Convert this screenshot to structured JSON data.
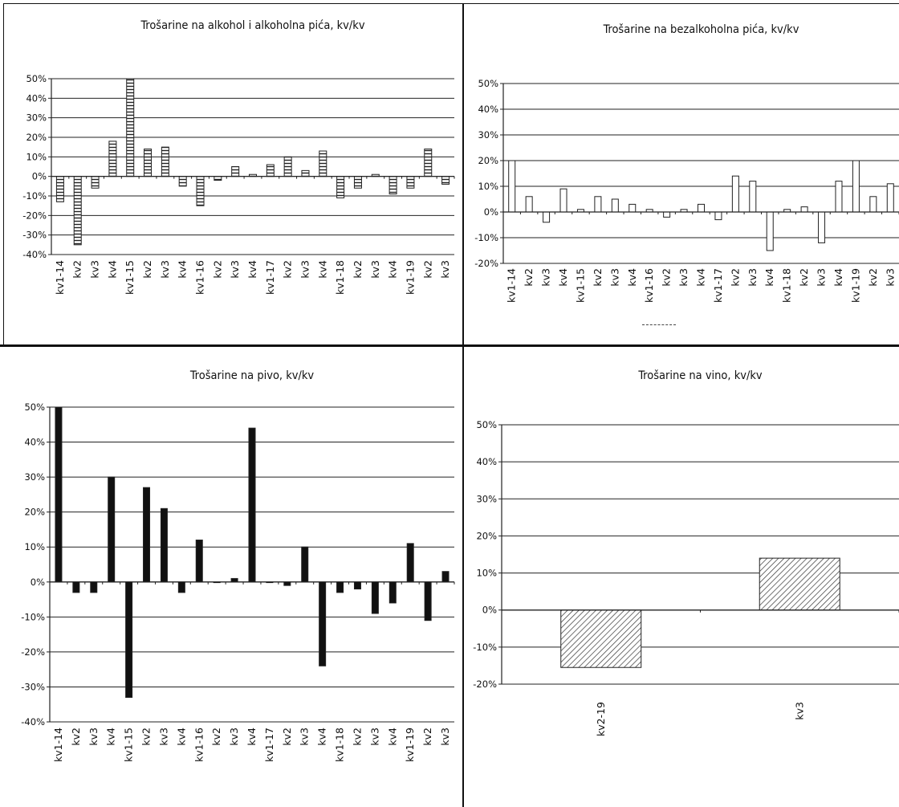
{
  "chart_data": [
    {
      "type": "bar",
      "title": "Trošarine na alkohol i alkoholna pića, kv/kv",
      "pattern": "horizontal-lines",
      "ylim": [
        -0.4,
        0.5
      ],
      "yticks": [
        "-40%",
        "-30%",
        "-20%",
        "-10%",
        "0%",
        "10%",
        "20%",
        "30%",
        "40%",
        "50%"
      ],
      "categories": [
        "kv1-14",
        "kv2",
        "kv3",
        "kv4",
        "kv1-15",
        "kv2",
        "kv3",
        "kv4",
        "kv1-16",
        "kv2",
        "kv3",
        "kv4",
        "kv1-17",
        "kv2",
        "kv3",
        "kv4",
        "kv1-18",
        "kv2",
        "kv3",
        "kv4",
        "kv1-19",
        "kv2",
        "kv3"
      ],
      "values": [
        -0.13,
        -0.35,
        -0.06,
        0.18,
        0.5,
        0.14,
        0.15,
        -0.05,
        -0.15,
        -0.02,
        0.05,
        0.01,
        0.06,
        0.1,
        0.03,
        0.13,
        -0.11,
        -0.06,
        0.01,
        -0.09,
        -0.06,
        0.14,
        -0.04
      ],
      "grid": true
    },
    {
      "type": "bar",
      "title": "Trošarine na bezalkoholna pića, kv/kv",
      "pattern": "white",
      "ylim": [
        -0.2,
        0.5
      ],
      "yticks": [
        "-20%",
        "-10%",
        "0%",
        "10%",
        "20%",
        "30%",
        "40%",
        "50%"
      ],
      "categories": [
        "kv1-14",
        "kv2",
        "kv3",
        "kv4",
        "kv1-15",
        "kv2",
        "kv3",
        "kv4",
        "kv1-16",
        "kv2",
        "kv3",
        "kv4",
        "kv1-17",
        "kv2",
        "kv3",
        "kv4",
        "kv1-18",
        "kv2",
        "kv3",
        "kv4",
        "kv1-19",
        "kv2",
        "kv3"
      ],
      "values": [
        0.2,
        0.06,
        -0.04,
        0.09,
        0.01,
        0.06,
        0.05,
        0.03,
        0.01,
        -0.02,
        0.01,
        0.03,
        -0.03,
        0.14,
        0.12,
        -0.15,
        0.01,
        0.02,
        -0.12,
        0.12,
        0.2,
        0.06,
        0.11
      ],
      "grid": true
    },
    {
      "type": "bar",
      "title": "Trošarine na pivo, kv/kv",
      "pattern": "solid-black",
      "ylim": [
        -0.4,
        0.5
      ],
      "yticks": [
        "-40%",
        "-30%",
        "-20%",
        "-10%",
        "0%",
        "10%",
        "20%",
        "30%",
        "40%",
        "50%"
      ],
      "categories": [
        "kv1-14",
        "kv2",
        "kv3",
        "kv4",
        "kv1-15",
        "kv2",
        "kv3",
        "kv4",
        "kv1-16",
        "kv2",
        "kv3",
        "kv4",
        "kv1-17",
        "kv2",
        "kv3",
        "kv4",
        "kv1-18",
        "kv2",
        "kv3",
        "kv4",
        "kv1-19",
        "kv2",
        "kv3"
      ],
      "values": [
        0.5,
        -0.03,
        -0.03,
        0.3,
        -0.33,
        0.27,
        0.21,
        -0.03,
        0.12,
        0.0,
        0.01,
        0.44,
        0.0,
        -0.01,
        0.1,
        -0.24,
        -0.03,
        -0.02,
        -0.09,
        -0.06,
        0.11,
        -0.11,
        0.03
      ],
      "grid": true
    },
    {
      "type": "bar",
      "title": "Trošarine na vino, kv/kv",
      "pattern": "diagonal-hatch",
      "ylim": [
        -0.2,
        0.5
      ],
      "yticks": [
        "-20%",
        "-10%",
        "0%",
        "10%",
        "20%",
        "30%",
        "40%",
        "50%"
      ],
      "categories": [
        "kv2-19",
        "kv3"
      ],
      "values": [
        -0.155,
        0.14
      ],
      "grid": true
    }
  ]
}
